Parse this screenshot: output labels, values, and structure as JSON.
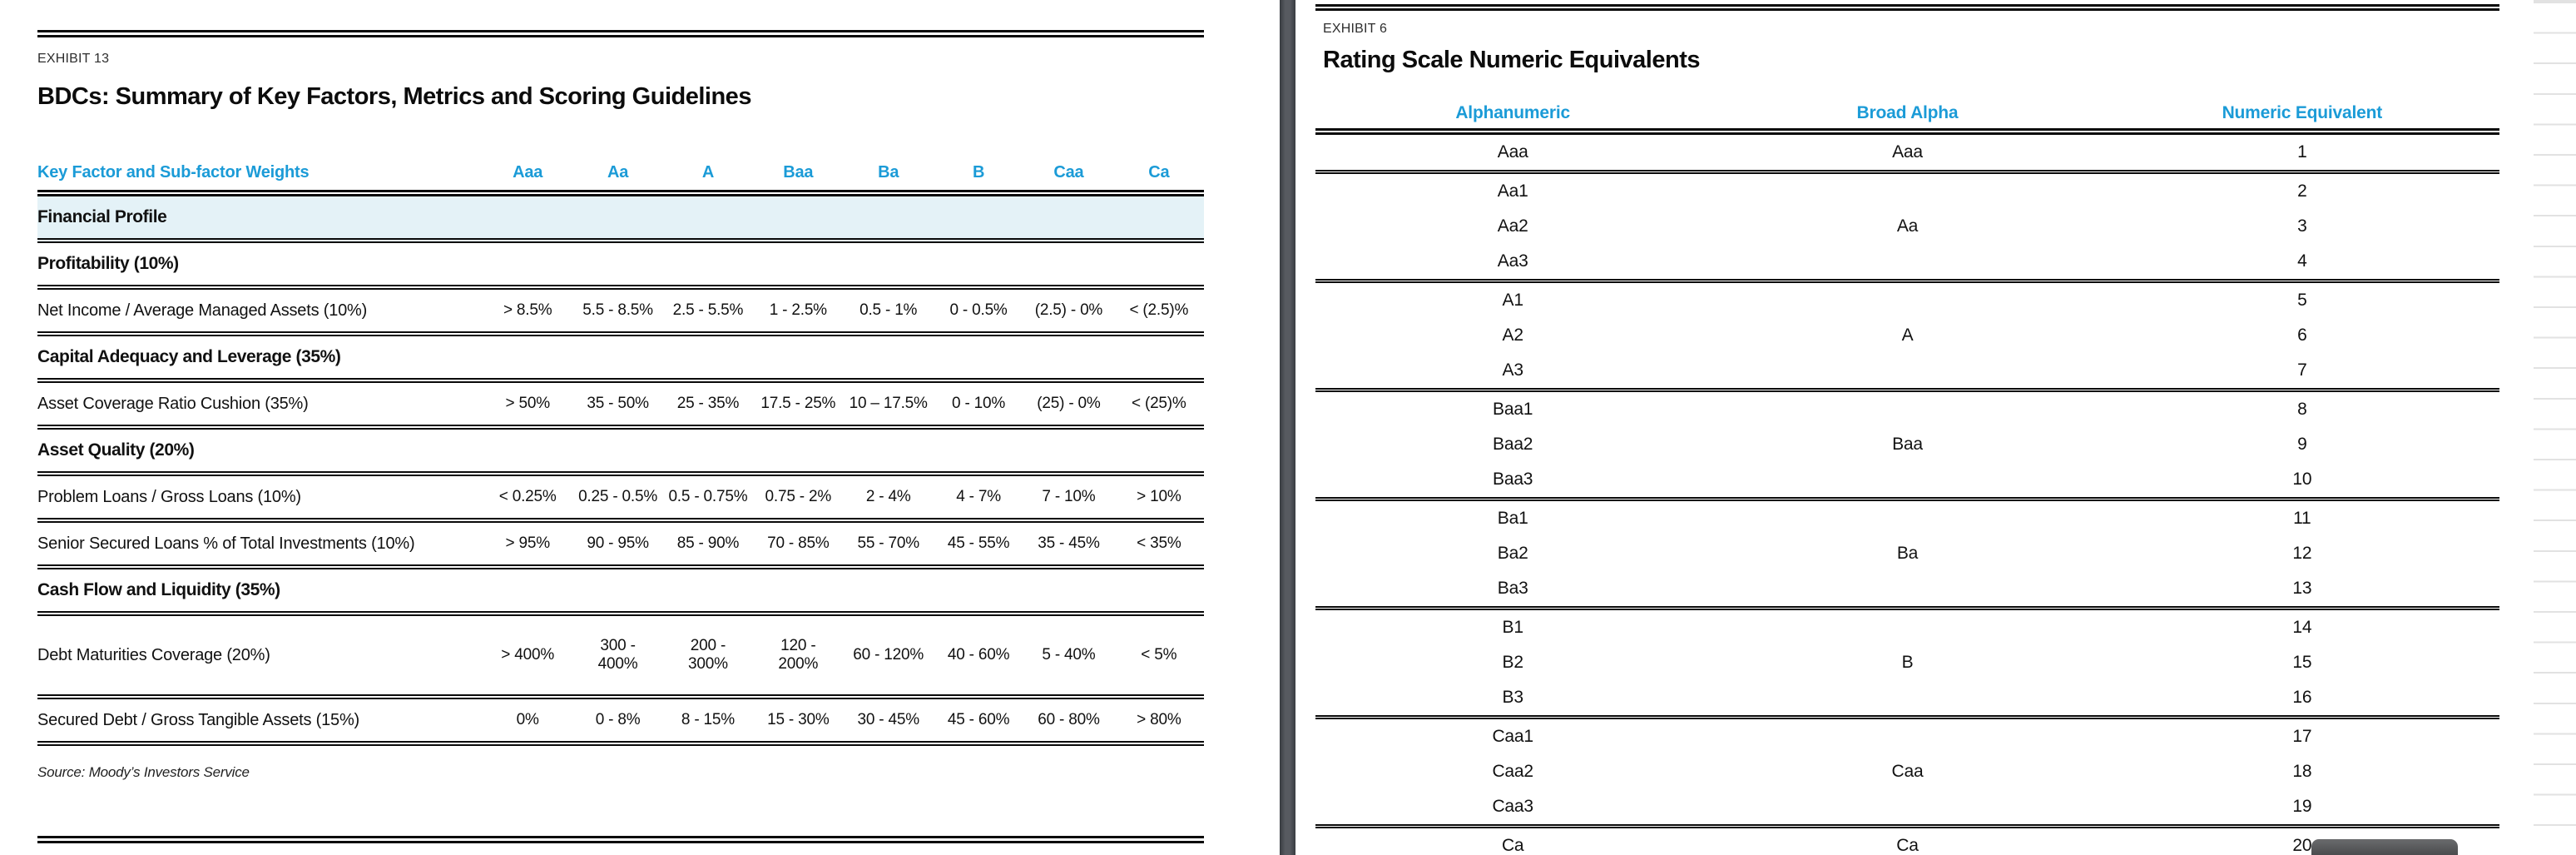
{
  "colors": {
    "accent_blue": "#1b9bd7",
    "band_highlight": "#e4f2f7",
    "rule_black": "#0a0a0a",
    "divider_gray": "#575a60",
    "scrollbar_thumb_gray": "#4c4d4f",
    "adjacent_page_line_gray": "#e2e2e2"
  },
  "left": {
    "eyebrow": "EXHIBIT 13",
    "title": "BDCs: Summary of Key Factors, Metrics and Scoring Guidelines",
    "header_label": "Key Factor and Sub-factor Weights",
    "columns": [
      "Aaa",
      "Aa",
      "A",
      "Baa",
      "Ba",
      "B",
      "Caa",
      "Ca"
    ],
    "rows": [
      {
        "kind": "band",
        "label": "Financial Profile"
      },
      {
        "kind": "section",
        "label": "Profitability (10%)"
      },
      {
        "kind": "metric",
        "label": "Net Income / Average Managed Assets (10%)",
        "values": [
          "> 8.5%",
          "5.5 - 8.5%",
          "2.5 - 5.5%",
          "1 - 2.5%",
          "0.5 - 1%",
          "0 - 0.5%",
          "(2.5) - 0%",
          "< (2.5)%"
        ]
      },
      {
        "kind": "section",
        "label": "Capital Adequacy and Leverage (35%)"
      },
      {
        "kind": "metric",
        "label": "Asset Coverage Ratio Cushion (35%)",
        "values": [
          "> 50%",
          "35 - 50%",
          "25 - 35%",
          "17.5 - 25%",
          "10 – 17.5%",
          "0 - 10%",
          "(25) - 0%",
          "< (25)%"
        ]
      },
      {
        "kind": "section",
        "label": "Asset Quality (20%)"
      },
      {
        "kind": "metric",
        "label": "Problem Loans / Gross Loans (10%)",
        "values": [
          "< 0.25%",
          "0.25 - 0.5%",
          "0.5 - 0.75%",
          "0.75 - 2%",
          "2 - 4%",
          "4 - 7%",
          "7 - 10%",
          "> 10%"
        ]
      },
      {
        "kind": "metric",
        "label": "Senior Secured Loans % of Total Investments (10%)",
        "values": [
          "> 95%",
          "90 - 95%",
          "85 - 90%",
          "70 - 85%",
          "55 - 70%",
          "45 - 55%",
          "35 - 45%",
          "< 35%"
        ]
      },
      {
        "kind": "section",
        "label": "Cash Flow and Liquidity (35%)"
      },
      {
        "kind": "metric",
        "tall": true,
        "label": "Debt Maturities Coverage (20%)",
        "values": [
          "> 400%",
          "300 -\n400%",
          "200 -\n300%",
          "120 -\n200%",
          "60 - 120%",
          "40 - 60%",
          "5 - 40%",
          "< 5%"
        ]
      },
      {
        "kind": "metric",
        "label": "Secured Debt / Gross Tangible Assets (15%)",
        "values": [
          "0%",
          "0 - 8%",
          "8 - 15%",
          "15 - 30%",
          "30 - 45%",
          "45 - 60%",
          "60 - 80%",
          "> 80%"
        ]
      }
    ],
    "source": "Source: Moody’s Investors Service"
  },
  "right": {
    "eyebrow": "EXHIBIT 6",
    "title": "Rating Scale Numeric Equivalents",
    "columns": [
      "Alphanumeric",
      "Broad Alpha",
      "Numeric Equivalent"
    ],
    "groups": [
      [
        [
          "Aaa",
          "Aaa",
          "1"
        ]
      ],
      [
        [
          "Aa1",
          "",
          "2"
        ],
        [
          "Aa2",
          "Aa",
          "3"
        ],
        [
          "Aa3",
          "",
          "4"
        ]
      ],
      [
        [
          "A1",
          "",
          "5"
        ],
        [
          "A2",
          "A",
          "6"
        ],
        [
          "A3",
          "",
          "7"
        ]
      ],
      [
        [
          "Baa1",
          "",
          "8"
        ],
        [
          "Baa2",
          "Baa",
          "9"
        ],
        [
          "Baa3",
          "",
          "10"
        ]
      ],
      [
        [
          "Ba1",
          "",
          "11"
        ],
        [
          "Ba2",
          "Ba",
          "12"
        ],
        [
          "Ba3",
          "",
          "13"
        ]
      ],
      [
        [
          "B1",
          "",
          "14"
        ],
        [
          "B2",
          "B",
          "15"
        ],
        [
          "B3",
          "",
          "16"
        ]
      ],
      [
        [
          "Caa1",
          "",
          "17"
        ],
        [
          "Caa2",
          "Caa",
          "18"
        ],
        [
          "Caa3",
          "",
          "19"
        ]
      ],
      [
        [
          "Ca",
          "Ca",
          "20"
        ]
      ]
    ]
  }
}
